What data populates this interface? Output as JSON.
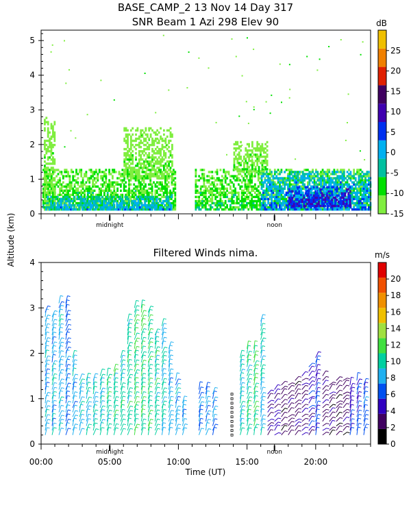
{
  "colors": {
    "snr_scale": [
      "#80ee40",
      "#00e000",
      "#00c0a0",
      "#00b0f0",
      "#0030f0",
      "#4000b0",
      "#400060",
      "#e02000",
      "#f08000",
      "#f0c000"
    ],
    "wind_scale": [
      "#000000",
      "#400060",
      "#3000c0",
      "#0050f0",
      "#20b0f0",
      "#00d0a0",
      "#40e040",
      "#a0e040",
      "#f0c000",
      "#f09000",
      "#f05000",
      "#e00000"
    ]
  },
  "header": {
    "line1": "BASE_CAMP_2   13 Nov 14 Day 317",
    "line2": "SNR Beam 1 Azi 298 Elev 90"
  },
  "shared": {
    "ylabel": "Altitude (km)",
    "xlabel": "Time (UT)",
    "midnight_label": "midnight",
    "noon_label": "noon"
  },
  "chart_data": [
    {
      "type": "heatmap",
      "title": "SNR Beam 1 Azi 298 Elev 90",
      "colorbar_unit": "dB",
      "colorbar_ticks": [
        "25",
        "20",
        "15",
        "10",
        "5",
        "0",
        "-5",
        "-10",
        "-15"
      ],
      "colorbar_range": [
        -15,
        30
      ],
      "y_ticks": [
        "0",
        "1",
        "2",
        "3",
        "4",
        "5"
      ],
      "ylim": [
        0,
        5.3
      ],
      "xlim": [
        0,
        24
      ],
      "midnight_at": 5,
      "noon_at": 17,
      "layers": [
        {
          "t0": 0.1,
          "t1": 9.7,
          "h0": 0.1,
          "h1": 1.3,
          "level": -8
        },
        {
          "t0": 0.2,
          "t1": 1.0,
          "h0": 0.1,
          "h1": 2.8,
          "level": -12
        },
        {
          "t0": 0.3,
          "t1": 9.5,
          "h0": 0.1,
          "h1": 0.5,
          "level": 0
        },
        {
          "t0": 6.0,
          "t1": 9.5,
          "h0": 1.0,
          "h1": 2.5,
          "level": -12
        },
        {
          "t0": 11.2,
          "t1": 24,
          "h0": 0.1,
          "h1": 1.3,
          "level": -8
        },
        {
          "t0": 16.0,
          "t1": 24,
          "h0": 0.1,
          "h1": 1.2,
          "level": 2
        },
        {
          "t0": 18.0,
          "t1": 22.5,
          "h0": 0.2,
          "h1": 0.8,
          "level": 8
        },
        {
          "t0": 14.0,
          "t1": 16.5,
          "h0": 1.2,
          "h1": 2.1,
          "level": -12
        }
      ]
    },
    {
      "type": "scatter",
      "title": "Filtered Winds nima.",
      "colorbar_unit": "m/s",
      "colorbar_ticks": [
        "20",
        "18",
        "16",
        "14",
        "12",
        "10",
        "8",
        "6",
        "4",
        "2",
        "0"
      ],
      "colorbar_range": [
        0,
        22
      ],
      "x_ticks": [
        "00:00",
        "05:00",
        "10:00",
        "15:00",
        "20:00"
      ],
      "x_tick_values": [
        0,
        5,
        10,
        15,
        20
      ],
      "y_ticks": [
        "0",
        "1",
        "2",
        "3",
        "4"
      ],
      "ylim": [
        0,
        4
      ],
      "xlim": [
        0,
        24
      ],
      "midnight_at": 5,
      "noon_at": 17,
      "columns": [
        {
          "t": 0.3,
          "top": 3.0,
          "speed": 9
        },
        {
          "t": 0.8,
          "top": 2.9,
          "speed": 9
        },
        {
          "t": 1.3,
          "top": 3.2,
          "speed": 9
        },
        {
          "t": 1.8,
          "top": 3.2,
          "speed": 8
        },
        {
          "t": 2.3,
          "top": 2.0,
          "speed": 9
        },
        {
          "t": 2.8,
          "top": 1.5,
          "speed": 10
        },
        {
          "t": 3.3,
          "top": 1.5,
          "speed": 10
        },
        {
          "t": 3.8,
          "top": 1.5,
          "speed": 10
        },
        {
          "t": 4.3,
          "top": 1.6,
          "speed": 10
        },
        {
          "t": 4.8,
          "top": 1.6,
          "speed": 11
        },
        {
          "t": 5.3,
          "top": 1.7,
          "speed": 11
        },
        {
          "t": 5.8,
          "top": 2.0,
          "speed": 11
        },
        {
          "t": 6.3,
          "top": 2.8,
          "speed": 11
        },
        {
          "t": 6.8,
          "top": 3.1,
          "speed": 12
        },
        {
          "t": 7.3,
          "top": 3.1,
          "speed": 12
        },
        {
          "t": 7.8,
          "top": 3.0,
          "speed": 12
        },
        {
          "t": 8.3,
          "top": 2.5,
          "speed": 11
        },
        {
          "t": 8.8,
          "top": 2.7,
          "speed": 10
        },
        {
          "t": 9.3,
          "top": 2.2,
          "speed": 9
        },
        {
          "t": 9.8,
          "top": 1.5,
          "speed": 9
        },
        {
          "t": 10.3,
          "top": 0.9,
          "speed": 9
        },
        {
          "t": 11.5,
          "top": 1.2,
          "speed": 8
        },
        {
          "t": 12.0,
          "top": 1.2,
          "speed": 8
        },
        {
          "t": 12.5,
          "top": 1.1,
          "speed": 8
        },
        {
          "t": 13.9,
          "top": 1.1,
          "speed": 0
        },
        {
          "t": 14.5,
          "top": 2.0,
          "speed": 10
        },
        {
          "t": 15.0,
          "top": 2.2,
          "speed": 11
        },
        {
          "t": 15.5,
          "top": 2.2,
          "speed": 12
        },
        {
          "t": 16.0,
          "top": 2.8,
          "speed": 10
        },
        {
          "t": 16.5,
          "top": 1.1,
          "speed": 4
        },
        {
          "t": 17.0,
          "top": 1.2,
          "speed": 4
        },
        {
          "t": 17.5,
          "top": 1.3,
          "speed": 3
        },
        {
          "t": 18.0,
          "top": 1.4,
          "speed": 3
        },
        {
          "t": 18.5,
          "top": 1.5,
          "speed": 3
        },
        {
          "t": 19.0,
          "top": 1.6,
          "speed": 4
        },
        {
          "t": 19.5,
          "top": 1.8,
          "speed": 5
        },
        {
          "t": 20.0,
          "top": 2.0,
          "speed": 6
        },
        {
          "t": 20.5,
          "top": 1.6,
          "speed": 4
        },
        {
          "t": 21.0,
          "top": 1.4,
          "speed": 3
        },
        {
          "t": 21.5,
          "top": 1.5,
          "speed": 3
        },
        {
          "t": 22.0,
          "top": 1.5,
          "speed": 3
        },
        {
          "t": 22.5,
          "top": 1.4,
          "speed": 6
        },
        {
          "t": 23.0,
          "top": 1.5,
          "speed": 6
        },
        {
          "t": 23.5,
          "top": 1.3,
          "speed": 7
        }
      ]
    }
  ]
}
